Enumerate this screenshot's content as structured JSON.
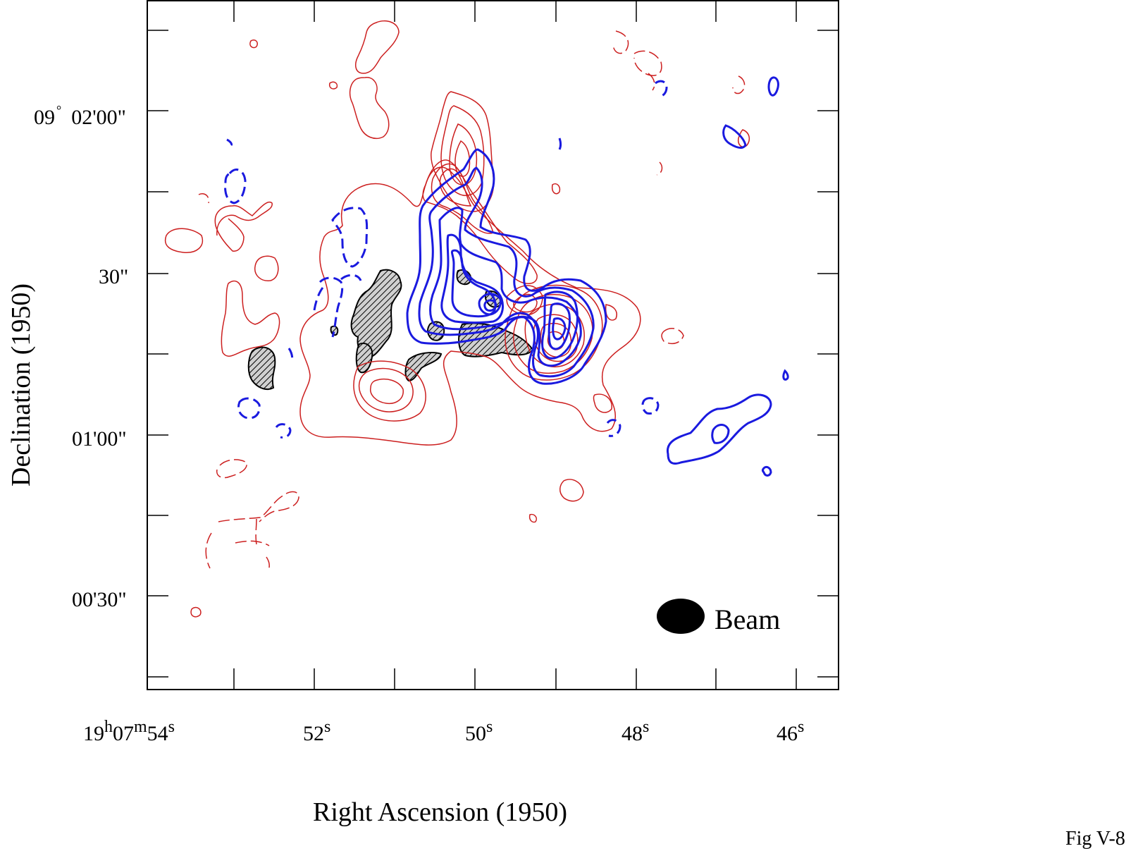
{
  "chart_data": {
    "type": "contour",
    "xlabel": "Right Ascension (1950)",
    "ylabel": "Declination (1950)",
    "x_ticks": [
      {
        "prefix": "19",
        "sup1": "h",
        "mid": "07",
        "sup2": "m",
        "val": "54",
        "sup3": "s"
      },
      {
        "val": "52",
        "sup3": "s"
      },
      {
        "val": "50",
        "sup3": "s"
      },
      {
        "val": "48",
        "sup3": "s"
      },
      {
        "val": "46",
        "sup3": "s"
      }
    ],
    "y_ticks": [
      {
        "deg": "09",
        "degsym": "°",
        "rest": "02'00\""
      },
      {
        "rest": "30\""
      },
      {
        "rest": "01'00\""
      },
      {
        "rest": "00'30\""
      }
    ],
    "beam_label": "Beam",
    "figure_label": "Fig V-8",
    "colors": {
      "redshifted": "#cc1f1f",
      "blueshifted": "#1a1adf",
      "hatched": "#000000"
    },
    "series": [
      {
        "color": "red",
        "linestyle": "solid / dashed (negative)"
      },
      {
        "color": "blue",
        "linestyle": "solid / dashed (negative)"
      },
      {
        "color": "black",
        "linestyle": "hatched filled regions"
      }
    ]
  }
}
